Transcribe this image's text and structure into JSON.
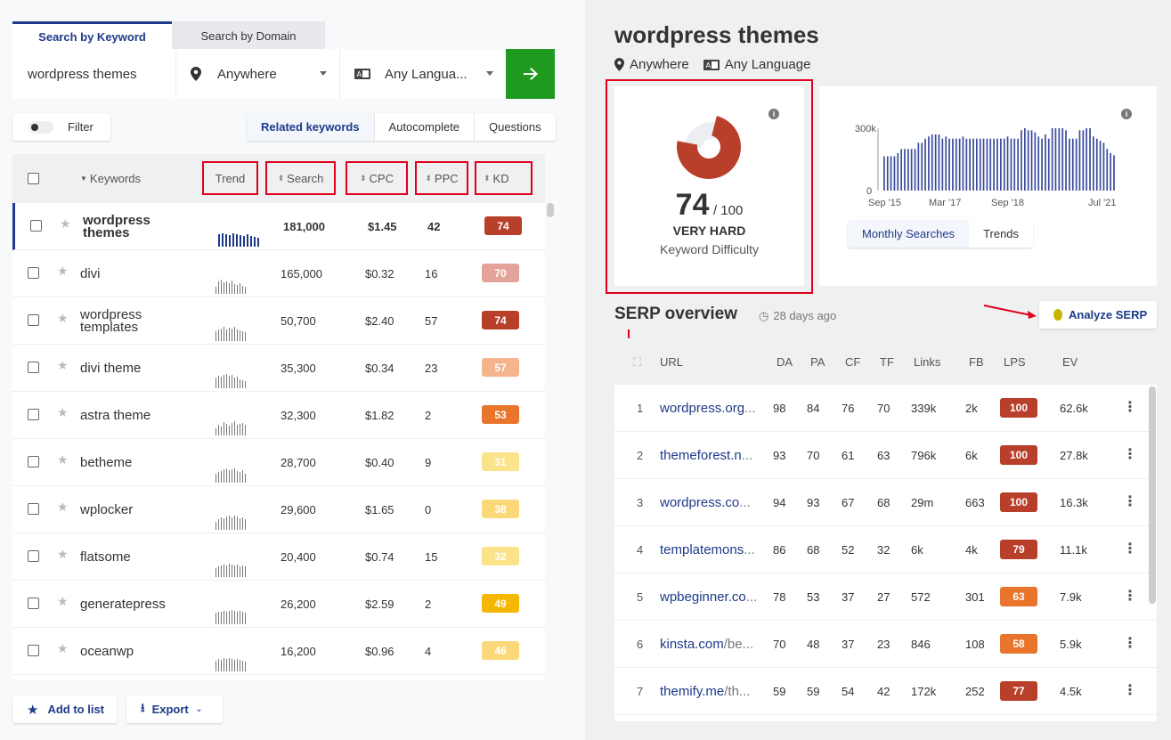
{
  "tabs": {
    "keyword": "Search by Keyword",
    "domain": "Search by Domain"
  },
  "search": {
    "keyword": "wordpress themes",
    "location": "Anywhere",
    "language": "Any Langua..."
  },
  "filter": {
    "label": "Filter"
  },
  "subtabs": [
    "Related keywords",
    "Autocomplete",
    "Questions"
  ],
  "table": {
    "headers": {
      "keywords": "Keywords",
      "trend": "Trend",
      "search": "Search",
      "cpc": "CPC",
      "ppc": "PPC",
      "kd": "KD"
    },
    "rows": [
      {
        "keyword": "wordpress themes",
        "search": "181,000",
        "cpc": "$1.45",
        "ppc": "42",
        "kd": "74",
        "kd_color": "#b8402b",
        "trend": [
          14,
          15,
          14,
          13,
          15,
          14,
          13,
          12,
          14,
          12,
          11,
          10
        ]
      },
      {
        "keyword": "divi",
        "search": "165,000",
        "cpc": "$0.32",
        "ppc": "16",
        "kd": "70",
        "kd_color": "#e3a39a",
        "trend": [
          8,
          14,
          16,
          13,
          14,
          12,
          15,
          11,
          10,
          12,
          9,
          8
        ]
      },
      {
        "keyword": "wordpress templates",
        "search": "50,700",
        "cpc": "$2.40",
        "ppc": "57",
        "kd": "74",
        "kd_color": "#b8402b",
        "trend": [
          11,
          13,
          14,
          16,
          13,
          15,
          14,
          16,
          13,
          12,
          11,
          10
        ]
      },
      {
        "keyword": "divi theme",
        "search": "35,300",
        "cpc": "$0.34",
        "ppc": "23",
        "kd": "57",
        "kd_color": "#f3b48e",
        "trend": [
          12,
          14,
          13,
          15,
          16,
          14,
          15,
          12,
          13,
          10,
          9,
          8
        ]
      },
      {
        "keyword": "astra theme",
        "search": "32,300",
        "cpc": "$1.82",
        "ppc": "2",
        "kd": "53",
        "kd_color": "#e8752b",
        "trend": [
          8,
          12,
          10,
          15,
          13,
          11,
          14,
          16,
          12,
          13,
          14,
          12
        ]
      },
      {
        "keyword": "betheme",
        "search": "28,700",
        "cpc": "$0.40",
        "ppc": "9",
        "kd": "31",
        "kd_color": "#fbe38a",
        "trend": [
          10,
          12,
          13,
          15,
          16,
          14,
          15,
          16,
          13,
          12,
          14,
          10
        ]
      },
      {
        "keyword": "wplocker",
        "search": "29,600",
        "cpc": "$1.65",
        "ppc": "0",
        "kd": "38",
        "kd_color": "#fbd97a",
        "trend": [
          9,
          12,
          14,
          13,
          15,
          16,
          14,
          16,
          15,
          13,
          14,
          12
        ]
      },
      {
        "keyword": "flatsome",
        "search": "20,400",
        "cpc": "$0.74",
        "ppc": "15",
        "kd": "32",
        "kd_color": "#fbe38a",
        "trend": [
          10,
          12,
          13,
          14,
          13,
          15,
          14,
          13,
          14,
          12,
          13,
          12
        ]
      },
      {
        "keyword": "generatepress",
        "search": "26,200",
        "cpc": "$2.59",
        "ppc": "2",
        "kd": "49",
        "kd_color": "#f5b700",
        "trend": [
          13,
          14,
          14,
          15,
          14,
          15,
          16,
          15,
          14,
          15,
          14,
          13
        ]
      },
      {
        "keyword": "oceanwp",
        "search": "16,200",
        "cpc": "$0.96",
        "ppc": "4",
        "kd": "46",
        "kd_color": "#fbd97a",
        "trend": [
          12,
          14,
          13,
          15,
          14,
          15,
          14,
          13,
          14,
          13,
          12,
          11
        ]
      }
    ]
  },
  "bottom": {
    "add_list": "Add to list",
    "export": "Export"
  },
  "detail": {
    "title": "wordpress themes",
    "location": "Anywhere",
    "language": "Any Language",
    "kd_value": "74",
    "kd_max": "/ 100",
    "kd_label": "VERY HARD",
    "kd_caption": "Keyword Difficulty",
    "kd_fraction": 0.74,
    "chart_tabs": [
      "Monthly Searches",
      "Trends"
    ]
  },
  "chart_data": {
    "type": "bar",
    "title": "",
    "ylim": [
      0,
      300000
    ],
    "yticks": [
      "300k",
      "0"
    ],
    "xticks": [
      "Sep '15",
      "Mar '17",
      "Sep '18",
      "Jul '21"
    ],
    "values": [
      165,
      165,
      165,
      165,
      180,
      200,
      200,
      200,
      200,
      200,
      230,
      230,
      250,
      260,
      270,
      270,
      270,
      250,
      260,
      250,
      250,
      250,
      250,
      260,
      250,
      250,
      250,
      250,
      250,
      250,
      250,
      250,
      250,
      250,
      250,
      250,
      260,
      250,
      250,
      250,
      290,
      300,
      290,
      290,
      280,
      260,
      250,
      270,
      250,
      300,
      300,
      300,
      300,
      290,
      250,
      250,
      250,
      290,
      290,
      300,
      300,
      260,
      250,
      240,
      230,
      200,
      180,
      170
    ]
  },
  "serp": {
    "title": "SERP overview",
    "ago": "28 days ago",
    "analyze": "Analyze SERP",
    "headers": [
      "URL",
      "DA",
      "PA",
      "CF",
      "TF",
      "Links",
      "FB",
      "LPS",
      "EV"
    ],
    "rows": [
      {
        "n": "1",
        "domain": "wordpress.org",
        "path": "...",
        "da": "98",
        "pa": "84",
        "cf": "76",
        "tf": "70",
        "links": "339k",
        "fb": "2k",
        "lps": "100",
        "lps_color": "#b8402b",
        "ev": "62.6k"
      },
      {
        "n": "2",
        "domain": "themeforest.n",
        "path": "...",
        "da": "93",
        "pa": "70",
        "cf": "61",
        "tf": "63",
        "links": "796k",
        "fb": "6k",
        "lps": "100",
        "lps_color": "#b8402b",
        "ev": "27.8k"
      },
      {
        "n": "3",
        "domain": "wordpress.co",
        "path": "...",
        "da": "94",
        "pa": "93",
        "cf": "67",
        "tf": "68",
        "links": "29m",
        "fb": "663",
        "lps": "100",
        "lps_color": "#b8402b",
        "ev": "16.3k"
      },
      {
        "n": "4",
        "domain": "templatemons",
        "path": "...",
        "da": "86",
        "pa": "68",
        "cf": "52",
        "tf": "32",
        "links": "6k",
        "fb": "4k",
        "lps": "79",
        "lps_color": "#b8402b",
        "ev": "11.1k"
      },
      {
        "n": "5",
        "domain": "wpbeginner.co",
        "path": "...",
        "da": "78",
        "pa": "53",
        "cf": "37",
        "tf": "27",
        "links": "572",
        "fb": "301",
        "lps": "63",
        "lps_color": "#e8752b",
        "ev": "7.9k"
      },
      {
        "n": "6",
        "domain": "kinsta.com",
        "path": "/be...",
        "da": "70",
        "pa": "48",
        "cf": "37",
        "tf": "23",
        "links": "846",
        "fb": "108",
        "lps": "58",
        "lps_color": "#e8752b",
        "ev": "5.9k"
      },
      {
        "n": "7",
        "domain": "themify.me",
        "path": "/th...",
        "da": "59",
        "pa": "59",
        "cf": "54",
        "tf": "42",
        "links": "172k",
        "fb": "252",
        "lps": "77",
        "lps_color": "#b8402b",
        "ev": "4.5k"
      }
    ]
  }
}
